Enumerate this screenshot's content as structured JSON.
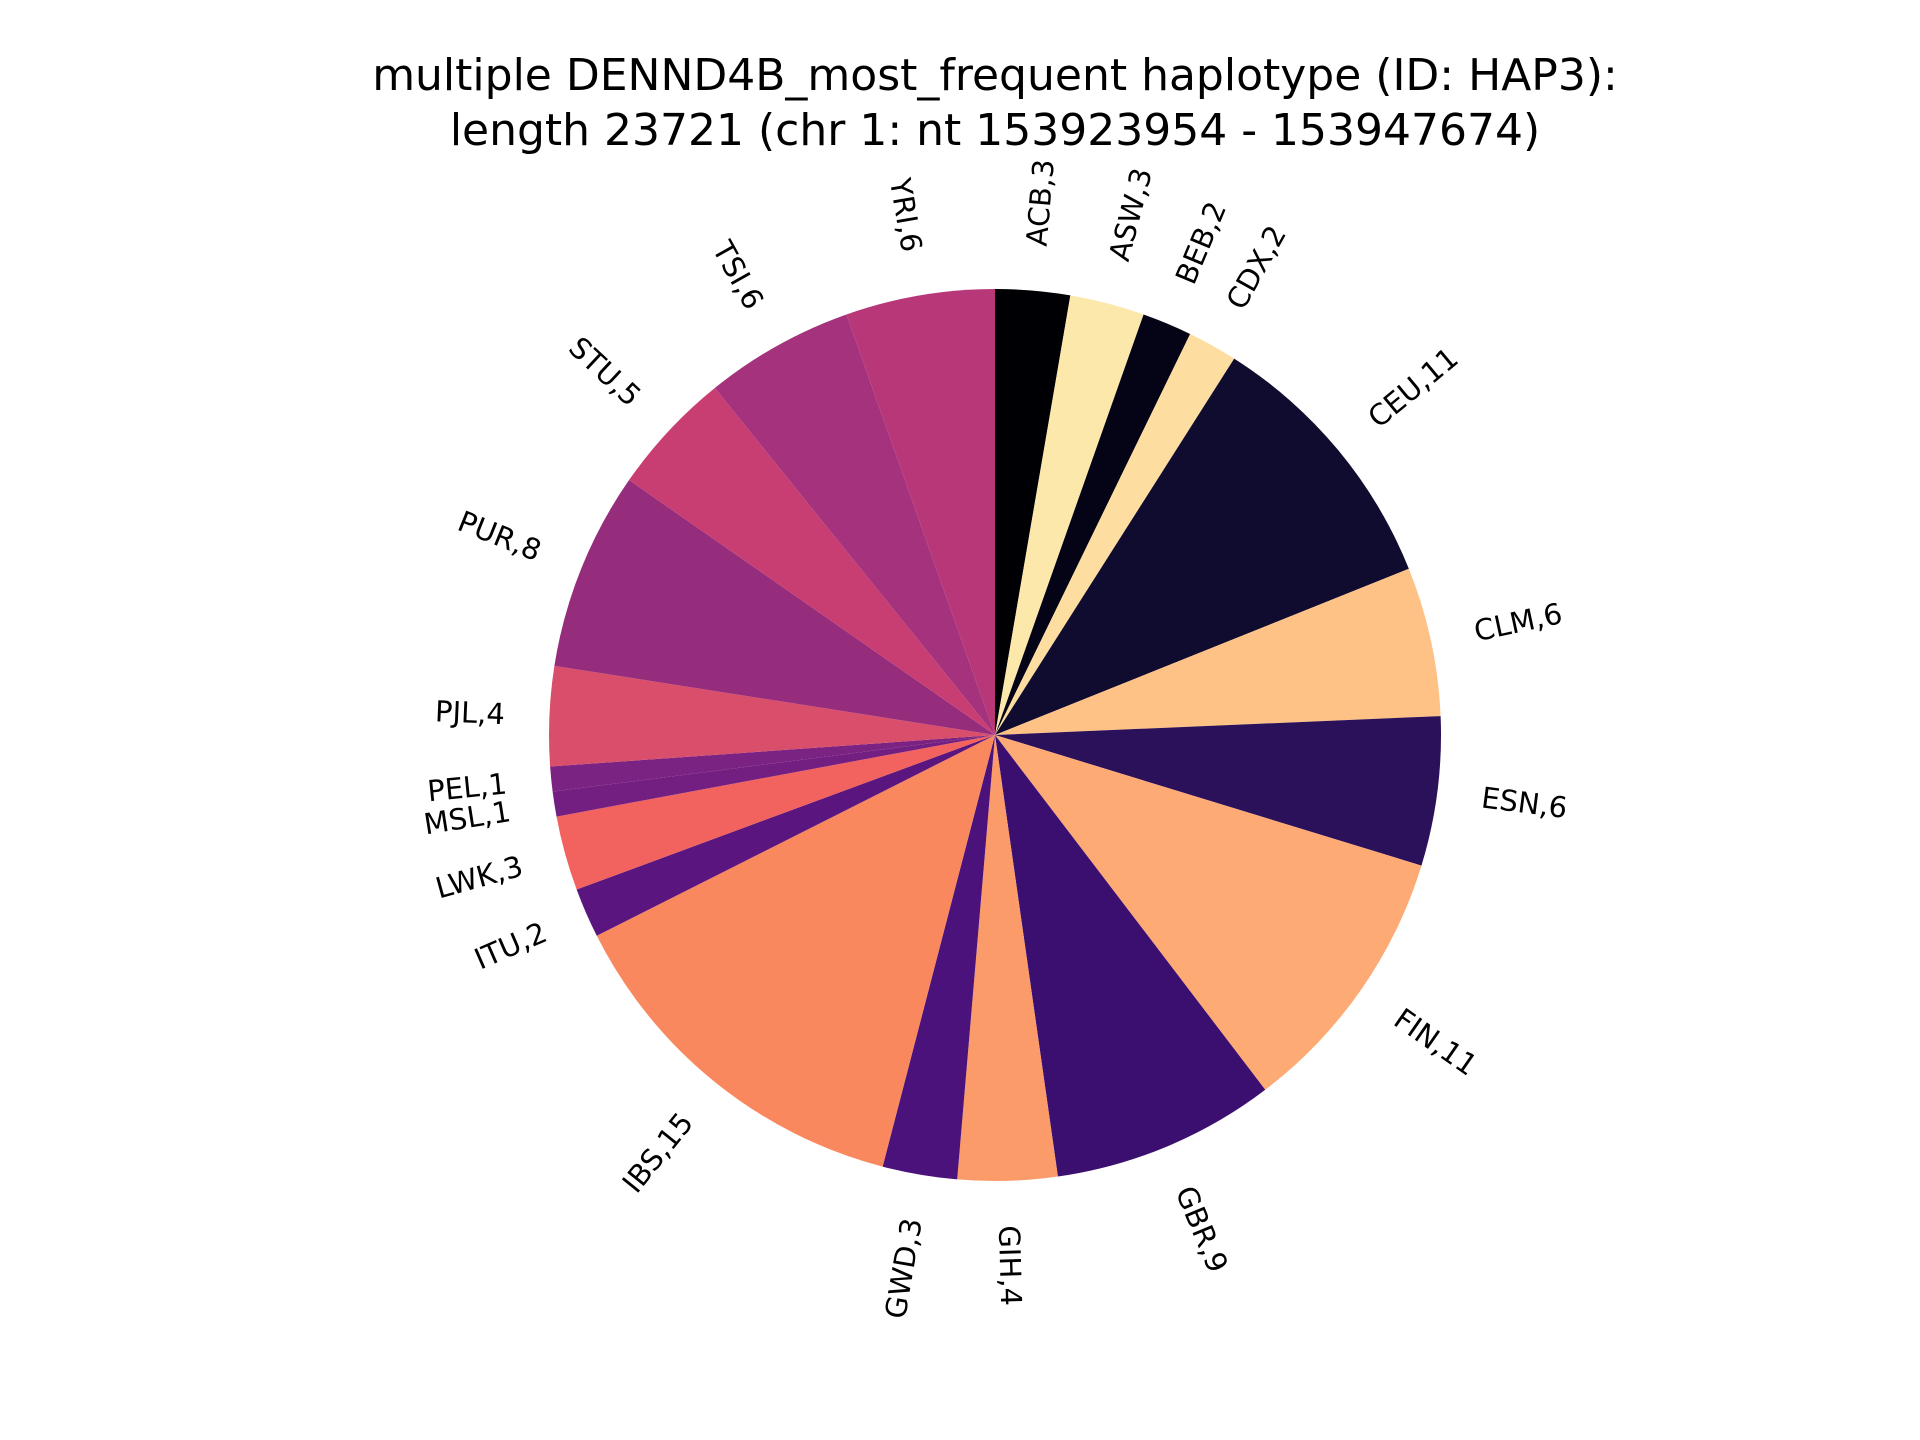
{
  "chart_data": {
    "type": "pie",
    "title_lines": [
      "multiple DENND4B_most_frequent haplotype (ID: HAP3):",
      "length 23721 (chr 1: nt 153923954 - 153947674)"
    ],
    "legend": "none",
    "start_angle": "90 degrees (top), counterclockwise",
    "slices": [
      {
        "label": "ACB,3",
        "category": "ACB",
        "value": 3,
        "color": "#000004"
      },
      {
        "label": "ASW,3",
        "category": "ASW",
        "value": 3,
        "color": "#fde8ac"
      },
      {
        "label": "BEB,2",
        "category": "BEB",
        "value": 2,
        "color": "#050417"
      },
      {
        "label": "CDX,2",
        "category": "CDX",
        "value": 2,
        "color": "#fddea0"
      },
      {
        "label": "CEU,11",
        "category": "CEU",
        "value": 11,
        "color": "#100c2f"
      },
      {
        "label": "CLM,6",
        "category": "CLM",
        "value": 6,
        "color": "#fec287"
      },
      {
        "label": "ESN,6",
        "category": "ESN",
        "value": 6,
        "color": "#2a115a"
      },
      {
        "label": "FIN,11",
        "category": "FIN",
        "value": 11,
        "color": "#feaa74"
      },
      {
        "label": "GBR,9",
        "category": "GBR",
        "value": 9,
        "color": "#3b0f70"
      },
      {
        "label": "GIH,4",
        "category": "GIH",
        "value": 4,
        "color": "#fb9b69"
      },
      {
        "label": "GWD,3",
        "category": "GWD",
        "value": 3,
        "color": "#4a127a"
      },
      {
        "label": "IBS,15",
        "category": "IBS",
        "value": 15,
        "color": "#f9885f"
      },
      {
        "label": "ITU,2",
        "category": "ITU",
        "value": 2,
        "color": "#5a167e"
      },
      {
        "label": "LWK,3",
        "category": "LWK",
        "value": 3,
        "color": "#f2625e"
      },
      {
        "label": "MSL,1",
        "category": "MSL",
        "value": 1,
        "color": "#721f81"
      },
      {
        "label": "PEL,1",
        "category": "PEL",
        "value": 1,
        "color": "#7b2382"
      },
      {
        "label": "PJL,4",
        "category": "PJL",
        "value": 4,
        "color": "#d94e6a"
      },
      {
        "label": "PUR,8",
        "category": "PUR",
        "value": 8,
        "color": "#962c7c"
      },
      {
        "label": "STU,5",
        "category": "STU",
        "value": 5,
        "color": "#c83e73"
      },
      {
        "label": "TSI,6",
        "category": "TSI",
        "value": 6,
        "color": "#a5327c"
      },
      {
        "label": "YRI,6",
        "category": "YRI",
        "value": 6,
        "color": "#b73779"
      }
    ]
  }
}
